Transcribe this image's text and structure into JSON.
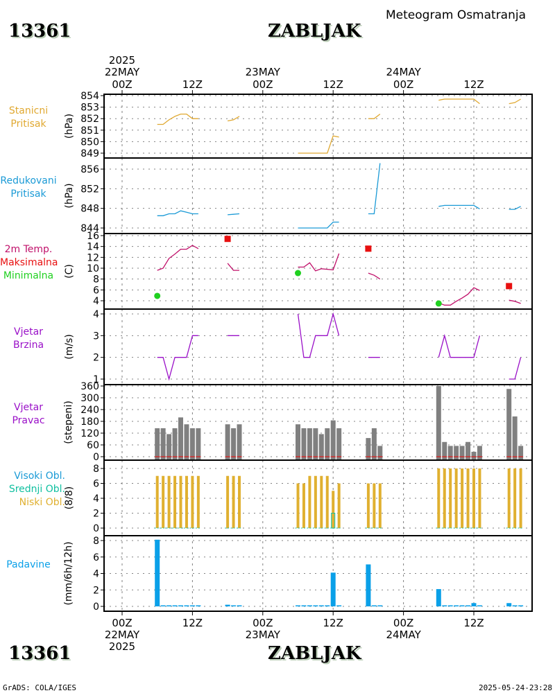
{
  "header": {
    "station_id": "13361",
    "station_name": "ZABLJAK",
    "title": "Meteogram Osmatranja"
  },
  "footer": {
    "station_id": "13361",
    "station_name": "ZABLJAK",
    "credit": "GrADS: COLA/IGES",
    "timestamp": "2025-05-24-23:28"
  },
  "time_axis": {
    "top_labels": [
      {
        "hour": 0,
        "lines": [
          "2025",
          "22MAY",
          "00Z"
        ]
      },
      {
        "hour": 12,
        "lines": [
          "",
          "",
          "12Z"
        ]
      },
      {
        "hour": 24,
        "lines": [
          "",
          "23MAY",
          "00Z"
        ]
      },
      {
        "hour": 36,
        "lines": [
          "",
          "",
          "12Z"
        ]
      },
      {
        "hour": 48,
        "lines": [
          "",
          "24MAY",
          "00Z"
        ]
      },
      {
        "hour": 60,
        "lines": [
          "",
          "",
          "12Z"
        ]
      }
    ],
    "bottom_labels": [
      {
        "hour": 0,
        "lines": [
          "00Z",
          "22MAY",
          "2025"
        ]
      },
      {
        "hour": 12,
        "lines": [
          "12Z",
          "",
          ""
        ]
      },
      {
        "hour": 24,
        "lines": [
          "00Z",
          "23MAY",
          ""
        ]
      },
      {
        "hour": 36,
        "lines": [
          "12Z",
          "",
          ""
        ]
      },
      {
        "hour": 48,
        "lines": [
          "00Z",
          "24MAY",
          ""
        ]
      },
      {
        "hour": 60,
        "lines": [
          "12Z",
          "",
          ""
        ]
      }
    ]
  },
  "colors": {
    "station_pressure": "#e0a830",
    "reduced_pressure": "#1a9ad6",
    "temperature": "#c0106a",
    "tmax": "#e81010",
    "tmin": "#20d020",
    "wind_speed": "#9a10c8",
    "wind_dir": "#808080",
    "high_cloud": "#1a9ad6",
    "mid_cloud": "#10c0a0",
    "low_cloud": "#e0b030",
    "precip": "#0aa0e8"
  },
  "chart_data": [
    {
      "type": "line",
      "id": "station_pressure",
      "labels": [
        "Stanicni",
        "Pritisak"
      ],
      "ylabel": "(hPa)",
      "ylim": [
        848.8,
        854.1
      ],
      "yticks": [
        849,
        850,
        851,
        852,
        853,
        854
      ],
      "segments": [
        {
          "x": [
            6,
            7,
            8,
            9,
            10,
            11,
            12,
            13
          ],
          "y": [
            851.5,
            851.5,
            851.9,
            852.2,
            852.4,
            852.4,
            852.0,
            852.0
          ]
        },
        {
          "x": [
            18,
            19,
            20
          ],
          "y": [
            851.8,
            851.9,
            852.2
          ]
        },
        {
          "x": [
            30,
            31,
            32,
            33,
            34,
            35,
            36,
            37
          ],
          "y": [
            849.0,
            849.0,
            849.0,
            849.0,
            849.0,
            849.0,
            850.5,
            850.4
          ]
        },
        {
          "x": [
            42,
            43,
            44
          ],
          "y": [
            852.0,
            852.0,
            852.4
          ]
        },
        {
          "x": [
            54,
            55,
            56,
            57,
            58,
            59,
            60,
            61
          ],
          "y": [
            853.6,
            853.7,
            853.7,
            853.7,
            853.7,
            853.7,
            853.7,
            853.3
          ]
        },
        {
          "x": [
            66,
            67,
            68
          ],
          "y": [
            853.3,
            853.4,
            853.7
          ]
        }
      ]
    },
    {
      "type": "line",
      "id": "reduced_pressure",
      "labels": [
        "Redukovani",
        "Pritisak"
      ],
      "ylabel": "(hPa)",
      "ylim": [
        843.5,
        858
      ],
      "yticks": [
        844,
        848,
        852,
        856
      ],
      "segments": [
        {
          "x": [
            6,
            7,
            8,
            9,
            10,
            11,
            12,
            13
          ],
          "y": [
            846.5,
            846.5,
            846.9,
            846.9,
            847.5,
            847.2,
            846.9,
            846.9
          ]
        },
        {
          "x": [
            18,
            19,
            20
          ],
          "y": [
            846.7,
            846.8,
            846.9
          ]
        },
        {
          "x": [
            30,
            31,
            32,
            33,
            34,
            35,
            36,
            37
          ],
          "y": [
            844.0,
            844.0,
            844.0,
            844.0,
            844.0,
            844.0,
            845.2,
            845.2
          ]
        },
        {
          "x": [
            42,
            43,
            44
          ],
          "y": [
            846.9,
            846.9,
            857.2
          ]
        },
        {
          "x": [
            54,
            55,
            56,
            57,
            58,
            59,
            60,
            61
          ],
          "y": [
            848.4,
            848.6,
            848.6,
            848.6,
            848.6,
            848.6,
            848.6,
            847.9
          ]
        },
        {
          "x": [
            66,
            67,
            68
          ],
          "y": [
            847.8,
            847.8,
            848.4
          ]
        }
      ]
    },
    {
      "type": "line",
      "id": "temperature",
      "labels": [
        "2m Temp.",
        "Maksimalna",
        "Minimalna"
      ],
      "ylabel": "(C)",
      "ylim": [
        3,
        16.5
      ],
      "yticks": [
        4,
        6,
        8,
        10,
        12,
        14,
        16
      ],
      "segments": [
        {
          "x": [
            6,
            7,
            8,
            9,
            10,
            11,
            12,
            13
          ],
          "y": [
            9.6,
            10.0,
            11.8,
            12.6,
            13.5,
            13.5,
            14.2,
            13.6
          ]
        },
        {
          "x": [
            18,
            19,
            20
          ],
          "y": [
            10.9,
            9.6,
            9.6
          ]
        },
        {
          "x": [
            30,
            31,
            32,
            33,
            34,
            35,
            36,
            37
          ],
          "y": [
            10.2,
            10.2,
            11.0,
            9.5,
            9.9,
            9.8,
            9.7,
            12.7
          ]
        },
        {
          "x": [
            42,
            43,
            44
          ],
          "y": [
            9.1,
            8.7,
            8.0
          ]
        },
        {
          "x": [
            54,
            55,
            56,
            57,
            58,
            59,
            60,
            61
          ],
          "y": [
            3.6,
            3.2,
            3.2,
            3.9,
            4.5,
            5.2,
            6.4,
            5.9
          ]
        },
        {
          "x": [
            66,
            67,
            68
          ],
          "y": [
            4.1,
            3.9,
            3.5
          ]
        }
      ],
      "tmax": [
        {
          "x": 18,
          "y": 15.4
        },
        {
          "x": 42,
          "y": 13.6
        },
        {
          "x": 66,
          "y": 6.7
        }
      ],
      "tmin": [
        {
          "x": 6,
          "y": 4.9
        },
        {
          "x": 30,
          "y": 9.1
        },
        {
          "x": 54,
          "y": 3.5
        }
      ]
    },
    {
      "type": "line",
      "id": "wind_speed",
      "labels": [
        "Vjetar",
        "Brzina"
      ],
      "ylabel": "(m/s)",
      "ylim": [
        0.9,
        4.2
      ],
      "yticks": [
        1,
        2,
        3,
        4
      ],
      "segments": [
        {
          "x": [
            6,
            7,
            8,
            9,
            10,
            11,
            12,
            13
          ],
          "y": [
            2,
            2,
            1,
            2,
            2,
            2,
            3,
            3
          ]
        },
        {
          "x": [
            18,
            19,
            20
          ],
          "y": [
            3,
            3,
            3
          ]
        },
        {
          "x": [
            30,
            31,
            32,
            33,
            34,
            35,
            36,
            37
          ],
          "y": [
            4,
            2,
            2,
            3,
            3,
            3,
            4,
            3
          ]
        },
        {
          "x": [
            42,
            43,
            44
          ],
          "y": [
            2,
            2,
            2
          ]
        },
        {
          "x": [
            54,
            55,
            56,
            57,
            58,
            59,
            60,
            61
          ],
          "y": [
            2,
            3,
            2,
            2,
            2,
            2,
            2,
            3
          ]
        },
        {
          "x": [
            66,
            67,
            68
          ],
          "y": [
            1,
            1,
            2
          ]
        }
      ]
    },
    {
      "type": "bar",
      "id": "wind_dir",
      "labels": [
        "Vjetar",
        "Pravac"
      ],
      "ylabel": "(stepeni)",
      "ylim": [
        -8,
        365
      ],
      "yticks": [
        0,
        60,
        120,
        180,
        240,
        300,
        360
      ],
      "x": [
        6,
        7,
        8,
        9,
        10,
        11,
        12,
        13,
        18,
        19,
        20,
        30,
        31,
        32,
        33,
        34,
        35,
        36,
        37,
        42,
        43,
        44,
        54,
        55,
        56,
        57,
        58,
        59,
        60,
        61,
        66,
        67,
        68
      ],
      "values": [
        145,
        145,
        115,
        145,
        200,
        165,
        145,
        145,
        165,
        145,
        165,
        165,
        145,
        145,
        145,
        115,
        145,
        185,
        145,
        95,
        145,
        55,
        360,
        75,
        55,
        55,
        55,
        75,
        25,
        55,
        345,
        205,
        55
      ]
    },
    {
      "type": "bar",
      "id": "clouds",
      "labels": [
        "Visoki Obl.",
        "Srednji Obl.",
        "Niski Obl."
      ],
      "ylabel": "(8/8)",
      "ylim": [
        -0.5,
        8.3
      ],
      "yticks": [
        0,
        2,
        4,
        6,
        8
      ],
      "x": [
        6,
        7,
        8,
        9,
        10,
        11,
        12,
        13,
        18,
        19,
        20,
        30,
        31,
        32,
        33,
        34,
        35,
        36,
        37,
        42,
        43,
        44,
        54,
        55,
        56,
        57,
        58,
        59,
        60,
        61,
        66,
        67,
        68
      ],
      "series": [
        {
          "name": "Niski Obl.",
          "values": [
            7,
            7,
            7,
            7,
            7,
            7,
            7,
            7,
            7,
            7,
            7,
            6,
            6,
            7,
            7,
            7,
            7,
            5,
            6,
            6,
            6,
            6,
            8,
            8,
            8,
            8,
            8,
            8,
            8,
            8,
            8,
            8,
            8
          ]
        },
        {
          "name": "Srednji Obl.",
          "values": [
            0,
            0,
            0,
            0,
            0,
            0,
            0,
            0,
            0,
            0,
            0,
            0,
            0,
            0,
            0,
            0,
            0,
            2,
            0,
            0,
            0,
            0,
            0,
            0,
            0,
            0,
            0,
            0,
            0,
            0,
            0,
            0,
            0
          ]
        },
        {
          "name": "Visoki Obl.",
          "values": [
            0,
            0,
            0,
            0,
            0,
            0,
            0,
            0,
            0,
            0,
            0,
            0,
            0,
            0,
            0,
            0,
            0,
            0,
            0,
            0,
            0,
            0,
            0,
            0,
            0,
            0,
            0,
            0,
            0,
            0,
            0,
            0,
            0
          ]
        }
      ]
    },
    {
      "type": "bar",
      "id": "precip",
      "labels": [
        "Padavine"
      ],
      "ylabel": "(mm/6h/12h)",
      "ylim": [
        -0.5,
        8.6
      ],
      "yticks": [
        0,
        2,
        4,
        6,
        8
      ],
      "x": [
        6,
        7,
        8,
        9,
        10,
        11,
        12,
        13,
        18,
        19,
        20,
        30,
        31,
        32,
        33,
        34,
        35,
        36,
        37,
        42,
        43,
        44,
        54,
        55,
        56,
        57,
        58,
        59,
        60,
        61,
        66,
        67,
        68
      ],
      "values": [
        8.1,
        0.1,
        0.1,
        0.1,
        0.1,
        0.1,
        0.1,
        0.1,
        0.2,
        0.1,
        0.1,
        0.1,
        0.1,
        0.1,
        0.1,
        0.1,
        0.1,
        4.1,
        0.1,
        5.1,
        0.1,
        0.1,
        2.1,
        0.1,
        0.1,
        0.1,
        0.1,
        0.1,
        0.4,
        0.1,
        0.4,
        0.1,
        0.1
      ]
    }
  ]
}
